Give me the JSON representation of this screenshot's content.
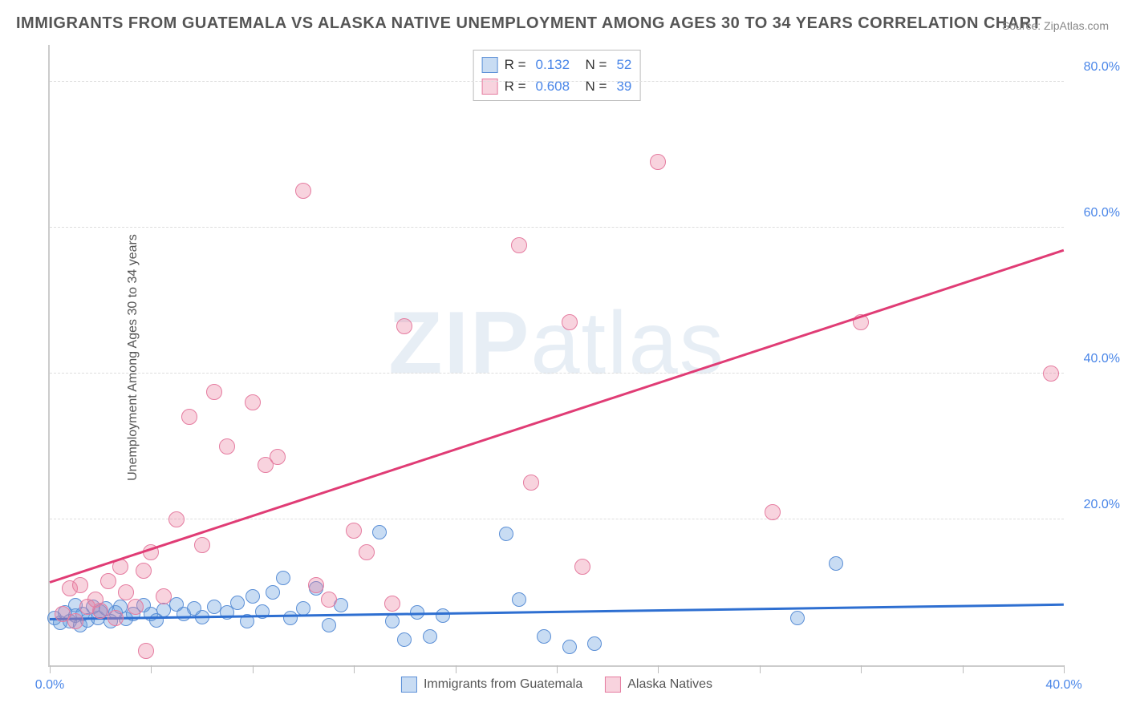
{
  "title": "IMMIGRANTS FROM GUATEMALA VS ALASKA NATIVE UNEMPLOYMENT AMONG AGES 30 TO 34 YEARS CORRELATION CHART",
  "source": "Source: ZipAtlas.com",
  "ylabel": "Unemployment Among Ages 30 to 34 years",
  "watermark_a": "ZIP",
  "watermark_b": "atlas",
  "chart": {
    "type": "scatter",
    "xlim": [
      0,
      40
    ],
    "ylim": [
      0,
      85
    ],
    "xtick_positions": [
      0,
      4,
      8,
      12,
      16,
      20,
      24,
      28,
      32,
      36,
      40
    ],
    "xtick_labels": [
      "0.0%",
      "",
      "",
      "",
      "",
      "",
      "",
      "",
      "",
      "",
      "40.0%"
    ],
    "ytick_positions": [
      20,
      40,
      60,
      80
    ],
    "ytick_labels": [
      "20.0%",
      "40.0%",
      "60.0%",
      "80.0%"
    ],
    "grid_color": "#dddddd",
    "axis_color": "#cccccc",
    "background_color": "#ffffff"
  },
  "series": [
    {
      "key": "guatemala",
      "label": "Immigrants from Guatemala",
      "color_fill": "rgba(96,155,222,0.35)",
      "color_stroke": "#5b8fd6",
      "r_value": "0.132",
      "n_value": "52",
      "trend": {
        "x1": 0,
        "y1": 6.5,
        "x2": 40,
        "y2": 8.5,
        "color": "#2e6fd1",
        "width": 3
      },
      "marker_radius": 9,
      "points": [
        [
          0.2,
          6.5
        ],
        [
          0.4,
          5.8
        ],
        [
          0.6,
          7.2
        ],
        [
          0.8,
          6.0
        ],
        [
          1.0,
          6.8
        ],
        [
          1.0,
          8.2
        ],
        [
          1.2,
          5.5
        ],
        [
          1.3,
          7.0
        ],
        [
          1.5,
          6.2
        ],
        [
          1.7,
          8.0
        ],
        [
          1.9,
          6.5
        ],
        [
          2.0,
          7.4
        ],
        [
          2.2,
          7.8
        ],
        [
          2.4,
          6.0
        ],
        [
          2.6,
          7.2
        ],
        [
          2.8,
          8.0
        ],
        [
          3.0,
          6.4
        ],
        [
          3.3,
          7.0
        ],
        [
          3.7,
          8.2
        ],
        [
          4.0,
          7.0
        ],
        [
          4.2,
          6.2
        ],
        [
          4.5,
          7.6
        ],
        [
          5.0,
          8.4
        ],
        [
          5.3,
          7.0
        ],
        [
          5.7,
          7.8
        ],
        [
          6.0,
          6.6
        ],
        [
          6.5,
          8.0
        ],
        [
          7.0,
          7.2
        ],
        [
          7.4,
          8.6
        ],
        [
          7.8,
          6.0
        ],
        [
          8.0,
          9.5
        ],
        [
          8.4,
          7.4
        ],
        [
          8.8,
          10.0
        ],
        [
          9.2,
          12.0
        ],
        [
          9.5,
          6.5
        ],
        [
          10.0,
          7.8
        ],
        [
          10.5,
          10.5
        ],
        [
          11.0,
          5.5
        ],
        [
          11.5,
          8.2
        ],
        [
          13.0,
          18.2
        ],
        [
          13.5,
          6.0
        ],
        [
          14.0,
          3.5
        ],
        [
          14.5,
          7.2
        ],
        [
          15.0,
          4.0
        ],
        [
          15.5,
          6.8
        ],
        [
          18.0,
          18.0
        ],
        [
          18.5,
          9.0
        ],
        [
          19.5,
          4.0
        ],
        [
          20.5,
          2.5
        ],
        [
          21.5,
          3.0
        ],
        [
          29.5,
          6.5
        ],
        [
          31.0,
          14.0
        ]
      ]
    },
    {
      "key": "alaska",
      "label": "Alaska Natives",
      "color_fill": "rgba(236,128,160,0.35)",
      "color_stroke": "#e57ca0",
      "r_value": "0.608",
      "n_value": "39",
      "trend": {
        "x1": 0,
        "y1": 11.5,
        "x2": 40,
        "y2": 57,
        "color": "#e03c75",
        "width": 3
      },
      "marker_radius": 10,
      "points": [
        [
          0.5,
          7.0
        ],
        [
          0.8,
          10.5
        ],
        [
          1.0,
          6.0
        ],
        [
          1.2,
          11.0
        ],
        [
          1.5,
          8.0
        ],
        [
          1.8,
          9.0
        ],
        [
          2.0,
          7.5
        ],
        [
          2.3,
          11.5
        ],
        [
          2.6,
          6.5
        ],
        [
          2.8,
          13.5
        ],
        [
          3.0,
          10.0
        ],
        [
          3.4,
          8.0
        ],
        [
          3.7,
          13.0
        ],
        [
          4.0,
          15.5
        ],
        [
          4.5,
          9.5
        ],
        [
          5.0,
          20.0
        ],
        [
          5.5,
          34.0
        ],
        [
          6.0,
          16.5
        ],
        [
          6.5,
          37.5
        ],
        [
          7.0,
          30.0
        ],
        [
          8.0,
          36.0
        ],
        [
          8.5,
          27.5
        ],
        [
          9.0,
          28.5
        ],
        [
          10.0,
          65.0
        ],
        [
          10.5,
          11.0
        ],
        [
          11.0,
          9.0
        ],
        [
          12.0,
          18.5
        ],
        [
          12.5,
          15.5
        ],
        [
          13.5,
          8.5
        ],
        [
          14.0,
          46.5
        ],
        [
          18.5,
          57.5
        ],
        [
          19.0,
          25.0
        ],
        [
          20.5,
          47.0
        ],
        [
          21.0,
          13.5
        ],
        [
          24.0,
          69.0
        ],
        [
          28.5,
          21.0
        ],
        [
          32.0,
          47.0
        ],
        [
          39.5,
          40.0
        ],
        [
          3.8,
          2.0
        ]
      ]
    }
  ],
  "legend_top": {
    "r_label": "R =",
    "n_label": "N ="
  },
  "legend_bottom": [
    {
      "key": "guatemala"
    },
    {
      "key": "alaska"
    }
  ]
}
